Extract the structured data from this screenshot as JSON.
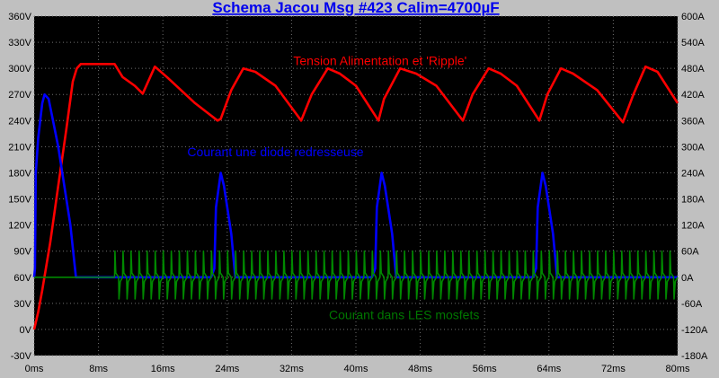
{
  "chart_data": {
    "type": "line",
    "title": "Schema Jacou Msg #423 Calim=4700µF",
    "background": "#000000",
    "grid": true,
    "xlim": [
      0,
      80
    ],
    "ylim_left": [
      -30,
      360
    ],
    "ylim_right": [
      -180,
      600
    ],
    "x_ticks": [
      0,
      8,
      16,
      24,
      32,
      40,
      48,
      56,
      64,
      72,
      80
    ],
    "x_tick_labels": [
      "0ms",
      "8ms",
      "16ms",
      "24ms",
      "32ms",
      "40ms",
      "48ms",
      "56ms",
      "64ms",
      "72ms",
      "80ms"
    ],
    "y_left_ticks": [
      -30,
      0,
      30,
      60,
      90,
      120,
      150,
      180,
      210,
      240,
      270,
      300,
      330,
      360
    ],
    "y_left_tick_labels": [
      "-30V",
      "0V",
      "30V",
      "60V",
      "90V",
      "120V",
      "150V",
      "180V",
      "210V",
      "240V",
      "270V",
      "300V",
      "330V",
      "360V"
    ],
    "y_right_ticks": [
      -180,
      -120,
      -60,
      0,
      60,
      120,
      180,
      240,
      300,
      360,
      420,
      480,
      540,
      600
    ],
    "y_right_tick_labels": [
      "-180A",
      "-120A",
      "-60A",
      "0A",
      "60A",
      "120A",
      "180A",
      "240A",
      "300A",
      "360A",
      "420A",
      "480A",
      "540A",
      "600A"
    ],
    "annotations": [
      {
        "text": "Tension Alimentation et 'Ripple'",
        "x": 43,
        "y": 304,
        "color": "#ff0000"
      },
      {
        "text": "Courant une diode redresseuse",
        "x": 30,
        "y": 199,
        "color": "#0000ff"
      },
      {
        "text": "Courant dans LES mosfets",
        "x": 46,
        "y": 12,
        "color": "#007700"
      }
    ],
    "series": [
      {
        "color": "#ff0000",
        "axis": "left",
        "points": [
          [
            0,
            0
          ],
          [
            0.5,
            20
          ],
          [
            1,
            45
          ],
          [
            2,
            100
          ],
          [
            3,
            165
          ],
          [
            4,
            230
          ],
          [
            4.8,
            285
          ],
          [
            5.3,
            300
          ],
          [
            5.8,
            305
          ],
          [
            10,
            305
          ],
          [
            11,
            290
          ],
          [
            12.5,
            280
          ],
          [
            13.5,
            271
          ],
          [
            15,
            302
          ],
          [
            16.5,
            290
          ],
          [
            20,
            260
          ],
          [
            22.8,
            240
          ],
          [
            23.2,
            242
          ],
          [
            24.5,
            275
          ],
          [
            26,
            300
          ],
          [
            27.5,
            296
          ],
          [
            30,
            280
          ],
          [
            33.2,
            240
          ],
          [
            34.5,
            270
          ],
          [
            36.5,
            300
          ],
          [
            38,
            294
          ],
          [
            40,
            280
          ],
          [
            42.8,
            240
          ],
          [
            43.5,
            265
          ],
          [
            45.5,
            300
          ],
          [
            47.5,
            294
          ],
          [
            50,
            280
          ],
          [
            53.3,
            240
          ],
          [
            54.5,
            270
          ],
          [
            56.5,
            300
          ],
          [
            58,
            294
          ],
          [
            60,
            280
          ],
          [
            62.8,
            240
          ],
          [
            63.8,
            270
          ],
          [
            65.5,
            300
          ],
          [
            67,
            294
          ],
          [
            70,
            275
          ],
          [
            73.2,
            238
          ],
          [
            74.5,
            270
          ],
          [
            76,
            302
          ],
          [
            77.5,
            296
          ],
          [
            80,
            260
          ]
        ]
      },
      {
        "color": "#0000ff",
        "axis": "left",
        "points": [
          [
            0,
            60
          ],
          [
            0.1,
            70
          ],
          [
            0.2,
            180
          ],
          [
            0.5,
            220
          ],
          [
            1,
            260
          ],
          [
            1.3,
            270
          ],
          [
            1.8,
            265
          ],
          [
            3,
            210
          ],
          [
            4.5,
            120
          ],
          [
            5.2,
            60
          ],
          [
            22,
            60
          ],
          [
            22.4,
            70
          ],
          [
            22.6,
            140
          ],
          [
            23.2,
            180
          ],
          [
            23.6,
            165
          ],
          [
            24.5,
            110
          ],
          [
            25,
            60
          ],
          [
            42,
            60
          ],
          [
            42.4,
            70
          ],
          [
            42.6,
            140
          ],
          [
            43.2,
            180
          ],
          [
            43.6,
            165
          ],
          [
            44.5,
            110
          ],
          [
            45,
            60
          ],
          [
            62,
            60
          ],
          [
            62.4,
            70
          ],
          [
            62.6,
            140
          ],
          [
            63.2,
            180
          ],
          [
            63.6,
            165
          ],
          [
            64.5,
            110
          ],
          [
            65,
            60
          ],
          [
            80,
            60
          ]
        ]
      },
      {
        "color": "#008800",
        "axis": "left",
        "osc_start_ms": 10,
        "osc_period_ms": 1,
        "osc_peak_v": 90,
        "osc_trough_v": 35,
        "points": [
          [
            0,
            60
          ],
          [
            10,
            60
          ],
          [
            80,
            60
          ]
        ]
      }
    ]
  }
}
